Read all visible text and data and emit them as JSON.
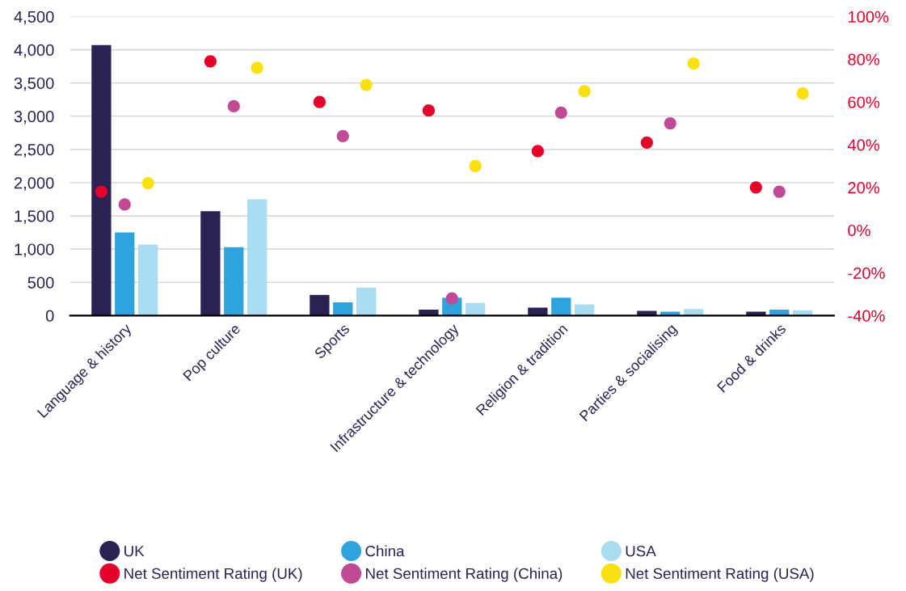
{
  "chart_data": {
    "type": "bar",
    "categories": [
      "Language & history",
      "Pop culture",
      "Sports",
      "Infrastructure & technology",
      "Religion & tradition",
      "Parties & socialising",
      "Food & drinks"
    ],
    "series": [
      {
        "name": "UK",
        "color": "#2b2153",
        "values": [
          4070,
          1570,
          310,
          90,
          120,
          70,
          60
        ]
      },
      {
        "name": "China",
        "color": "#2ea3dc",
        "values": [
          1250,
          1030,
          200,
          270,
          270,
          60,
          90
        ]
      },
      {
        "name": "USA",
        "color": "#a9dcf0",
        "values": [
          1070,
          1750,
          420,
          190,
          170,
          100,
          80
        ]
      },
      {
        "name": "Net Sentiment Rating (UK)",
        "type": "scatter",
        "axis": "y2",
        "color": "#e4002b",
        "x": [
          "Language & history",
          "Pop culture",
          "Sports",
          "Infrastructure & technology",
          "Religion & tradition",
          "Parties & socialising",
          "Food & drinks"
        ],
        "values": [
          18,
          79,
          60,
          56,
          37,
          41,
          20
        ]
      },
      {
        "name": "Net Sentiment Rating (China)",
        "type": "scatter",
        "axis": "y2",
        "color": "#c04a96",
        "x": [
          "Language & history",
          "Pop culture",
          "Sports",
          "Infrastructure & technology",
          "Religion & tradition",
          "Parties & socialising",
          "Food & drinks"
        ],
        "values": [
          12,
          58,
          44,
          -32,
          55,
          50,
          18
        ]
      },
      {
        "name": "Net Sentiment Rating (USA)",
        "type": "scatter",
        "axis": "y2",
        "color": "#fbe010",
        "x": [
          "Language & history",
          "Pop culture",
          "Sports",
          "Infrastructure & technology",
          "Religion & tradition",
          "Parties & socialising",
          "Food & drinks"
        ],
        "values": [
          22,
          76,
          68,
          30,
          65,
          78,
          64
        ]
      }
    ],
    "ylim": [
      0,
      4500
    ],
    "yticks": [
      0,
      500,
      {
        "value": 1000,
        "label": "1,000"
      },
      {
        "value": 1500,
        "label": "1,500"
      },
      {
        "value": 2000,
        "label": "2,000"
      },
      {
        "value": 2500,
        "label": "2,500"
      },
      {
        "value": 3000,
        "label": "3,000"
      },
      {
        "value": 3500,
        "label": "3,500"
      },
      {
        "value": 4000,
        "label": "4,000"
      },
      {
        "value": 4500,
        "label": "4,500"
      }
    ],
    "y2lim": [
      -40,
      100
    ],
    "y2ticks": [
      {
        "value": -40,
        "label": "-40%"
      },
      {
        "value": -20,
        "label": "-20%"
      },
      {
        "value": 0,
        "label": "0%"
      },
      {
        "value": 20,
        "label": "20%"
      },
      {
        "value": 40,
        "label": "40%"
      },
      {
        "value": 60,
        "label": "60%"
      },
      {
        "value": 80,
        "label": "80%"
      },
      {
        "value": 100,
        "label": "100%"
      }
    ],
    "grid": "y",
    "legend": "bottom",
    "marker": "circle"
  }
}
